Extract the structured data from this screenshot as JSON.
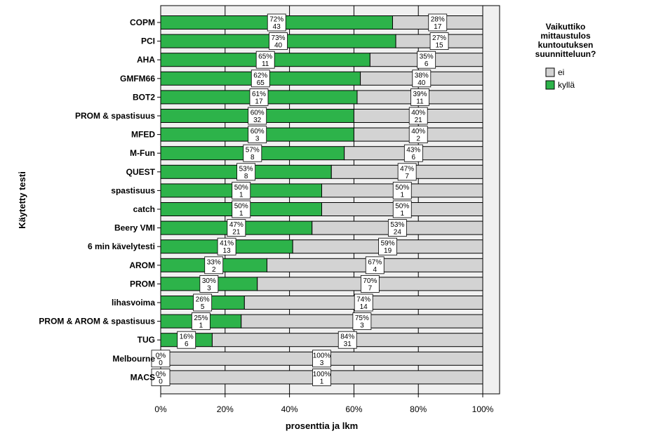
{
  "chart_data": {
    "type": "bar",
    "orientation": "horizontal",
    "stacked": true,
    "percent": true,
    "categories": [
      "COPM",
      "PCI",
      "AHA",
      "GMFM66",
      "BOT2",
      "PROM & spastisuus",
      "MFED",
      "M-Fun",
      "QUEST",
      "spastisuus",
      "catch",
      "Beery VMI",
      "6 min kävelytesti",
      "AROM",
      "PROM",
      "lihasvoima",
      "PROM & AROM & spastisuus",
      "TUG",
      "Melbourne",
      "MACS"
    ],
    "series": [
      {
        "name": "kyllä",
        "color": "#2db34a",
        "percent": [
          72,
          73,
          65,
          62,
          61,
          60,
          60,
          57,
          53,
          50,
          50,
          47,
          41,
          33,
          30,
          26,
          25,
          16,
          0,
          0
        ],
        "counts": [
          43,
          40,
          11,
          65,
          17,
          32,
          3,
          8,
          8,
          1,
          1,
          21,
          13,
          2,
          3,
          5,
          1,
          6,
          0,
          0
        ]
      },
      {
        "name": "ei",
        "color": "#d3d3d3",
        "percent": [
          28,
          27,
          35,
          38,
          39,
          40,
          40,
          43,
          47,
          50,
          50,
          53,
          59,
          67,
          70,
          74,
          75,
          84,
          100,
          100
        ],
        "counts": [
          17,
          15,
          6,
          40,
          11,
          21,
          2,
          6,
          7,
          1,
          1,
          24,
          19,
          4,
          7,
          14,
          3,
          31,
          3,
          1
        ]
      }
    ],
    "xlabel": "prosenttia ja lkm",
    "ylabel": "Käytetty testi",
    "xlim": [
      0,
      100
    ],
    "xticks": [
      "0%",
      "20%",
      "40%",
      "60%",
      "80%",
      "100%"
    ],
    "grid": true,
    "legend": {
      "title_lines": [
        "Vaikuttiko",
        "mittaustulos",
        "kuntoutuksen",
        "suunnitteluun?"
      ],
      "placement": "right",
      "entries": [
        "ei",
        "kyllä"
      ]
    }
  }
}
